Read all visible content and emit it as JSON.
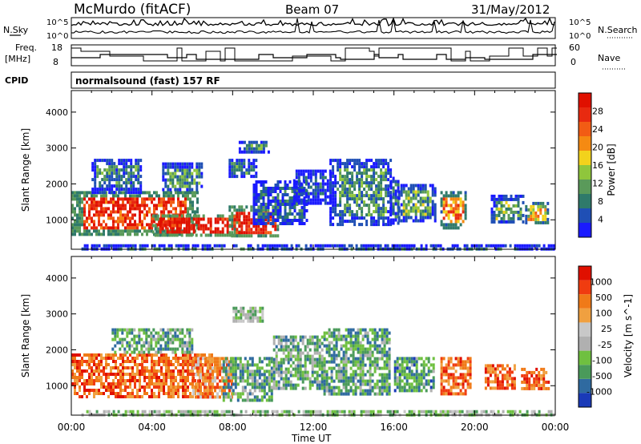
{
  "header": {
    "station": "McMurdo (fitACF)",
    "beam": "Beam 07",
    "date": "31/May/2012"
  },
  "panels": {
    "nsky_label": "N.Sky",
    "nsearch_label": "N.Search",
    "noise_ticks": [
      "10^5",
      "10^0"
    ],
    "freq_label_1": "Freq.",
    "freq_label_2": "[MHz]",
    "freq_ticks": [
      "18",
      "8"
    ],
    "nave_label": "Nave",
    "nave_ticks": [
      "60",
      "0"
    ],
    "cpid_label": "CPID",
    "cpid_text": "normalsound (fast) 157 RF"
  },
  "colors": {
    "power_scale": [
      "#1a1aff",
      "#1f4fb5",
      "#2f7a6a",
      "#5a9a5a",
      "#8fc63c",
      "#f2d21c",
      "#f58a12",
      "#f25c14",
      "#e82a10",
      "#e01000"
    ],
    "velocity_scale": [
      "#e01000",
      "#f03c10",
      "#f07a18",
      "#f0a040",
      "#c8c8c8",
      "#b0b0b0",
      "#6fc040",
      "#4a9a5a",
      "#2f6aa0",
      "#1a3ab8"
    ]
  },
  "chart_data": [
    {
      "type": "heatmap",
      "name": "power",
      "ylabel": "Slant Range [km]",
      "xlabel": "Time UT",
      "x_ticks": [
        "00:00",
        "04:00",
        "08:00",
        "12:00",
        "16:00",
        "20:00",
        "00:00"
      ],
      "y_ticks": [
        "1000",
        "2000",
        "3000",
        "4000"
      ],
      "xlim": [
        0,
        24
      ],
      "ylim": [
        180,
        4600
      ],
      "colorbar_label": "Power [dB]",
      "colorbar_ticks": [
        "4",
        "8",
        "12",
        "16",
        "20",
        "24",
        "28"
      ],
      "regions": [
        {
          "t0": 0.0,
          "t1": 6.2,
          "r0": 600,
          "r1": 1800,
          "level": 0.85
        },
        {
          "t0": 4.0,
          "t1": 8.3,
          "r0": 550,
          "r1": 1150,
          "level": 0.95
        },
        {
          "t0": 7.8,
          "t1": 10.3,
          "r0": 550,
          "r1": 1400,
          "level": 0.9
        },
        {
          "t0": 1.0,
          "t1": 3.5,
          "r0": 1800,
          "r1": 2700,
          "level": 0.25
        },
        {
          "t0": 4.5,
          "t1": 6.5,
          "r0": 1800,
          "r1": 2600,
          "level": 0.3
        },
        {
          "t0": 7.8,
          "t1": 9.2,
          "r0": 2200,
          "r1": 2700,
          "level": 0.25
        },
        {
          "t0": 9.0,
          "t1": 11.7,
          "r0": 900,
          "r1": 2100,
          "level": 0.2
        },
        {
          "t0": 11.0,
          "t1": 12.8,
          "r0": 1500,
          "r1": 2400,
          "level": 0.15
        },
        {
          "t0": 12.8,
          "t1": 15.8,
          "r0": 900,
          "r1": 2700,
          "level": 0.3
        },
        {
          "t0": 15.8,
          "t1": 16.2,
          "r0": 900,
          "r1": 2200,
          "level": 0.2
        },
        {
          "t0": 16.2,
          "t1": 18.0,
          "r0": 1000,
          "r1": 2000,
          "level": 0.35
        },
        {
          "t0": 18.3,
          "t1": 19.5,
          "r0": 800,
          "r1": 1800,
          "level": 0.7
        },
        {
          "t0": 20.8,
          "t1": 22.4,
          "r0": 900,
          "r1": 1700,
          "level": 0.35
        },
        {
          "t0": 22.5,
          "t1": 23.6,
          "r0": 900,
          "r1": 1500,
          "level": 0.55
        },
        {
          "t0": 8.3,
          "t1": 9.8,
          "r0": 2900,
          "r1": 3200,
          "level": 0.3
        },
        {
          "t0": 0.5,
          "t1": 23.9,
          "r0": 200,
          "r1": 320,
          "level": 0.2
        }
      ]
    },
    {
      "type": "heatmap",
      "name": "velocity",
      "ylabel": "Slant Range [km]",
      "xlabel": "Time UT",
      "x_ticks": [
        "00:00",
        "04:00",
        "08:00",
        "12:00",
        "16:00",
        "20:00",
        "00:00"
      ],
      "y_ticks": [
        "1000",
        "2000",
        "3000",
        "4000"
      ],
      "xlim": [
        0,
        24
      ],
      "ylim": [
        180,
        4600
      ],
      "colorbar_label": "Velocity [m s^-1]",
      "colorbar_ticks": [
        "1000",
        "500",
        "100",
        "25",
        "-25",
        "-100",
        "-500",
        "-1000"
      ],
      "regions": [
        {
          "t0": 0.0,
          "t1": 7.0,
          "r0": 700,
          "r1": 1900,
          "level": 0.22
        },
        {
          "t0": 6.0,
          "t1": 8.0,
          "r0": 700,
          "r1": 1800,
          "level": 0.3
        },
        {
          "t0": 7.5,
          "t1": 10.0,
          "r0": 600,
          "r1": 1800,
          "level": 0.72
        },
        {
          "t0": 10.0,
          "t1": 12.5,
          "r0": 900,
          "r1": 2400,
          "level": 0.68
        },
        {
          "t0": 12.5,
          "t1": 15.8,
          "r0": 800,
          "r1": 2600,
          "level": 0.72
        },
        {
          "t0": 16.0,
          "t1": 18.0,
          "r0": 900,
          "r1": 1800,
          "level": 0.75
        },
        {
          "t0": 18.3,
          "t1": 19.8,
          "r0": 800,
          "r1": 1800,
          "level": 0.22
        },
        {
          "t0": 20.5,
          "t1": 22.0,
          "r0": 900,
          "r1": 1600,
          "level": 0.2
        },
        {
          "t0": 22.3,
          "t1": 23.7,
          "r0": 900,
          "r1": 1500,
          "level": 0.22
        },
        {
          "t0": 2.0,
          "t1": 6.0,
          "r0": 1900,
          "r1": 2600,
          "level": 0.7
        },
        {
          "t0": 8.0,
          "t1": 9.5,
          "r0": 2800,
          "r1": 3200,
          "level": 0.6
        },
        {
          "t0": 0.5,
          "t1": 23.9,
          "r0": 200,
          "r1": 320,
          "level": 0.6
        }
      ]
    }
  ]
}
